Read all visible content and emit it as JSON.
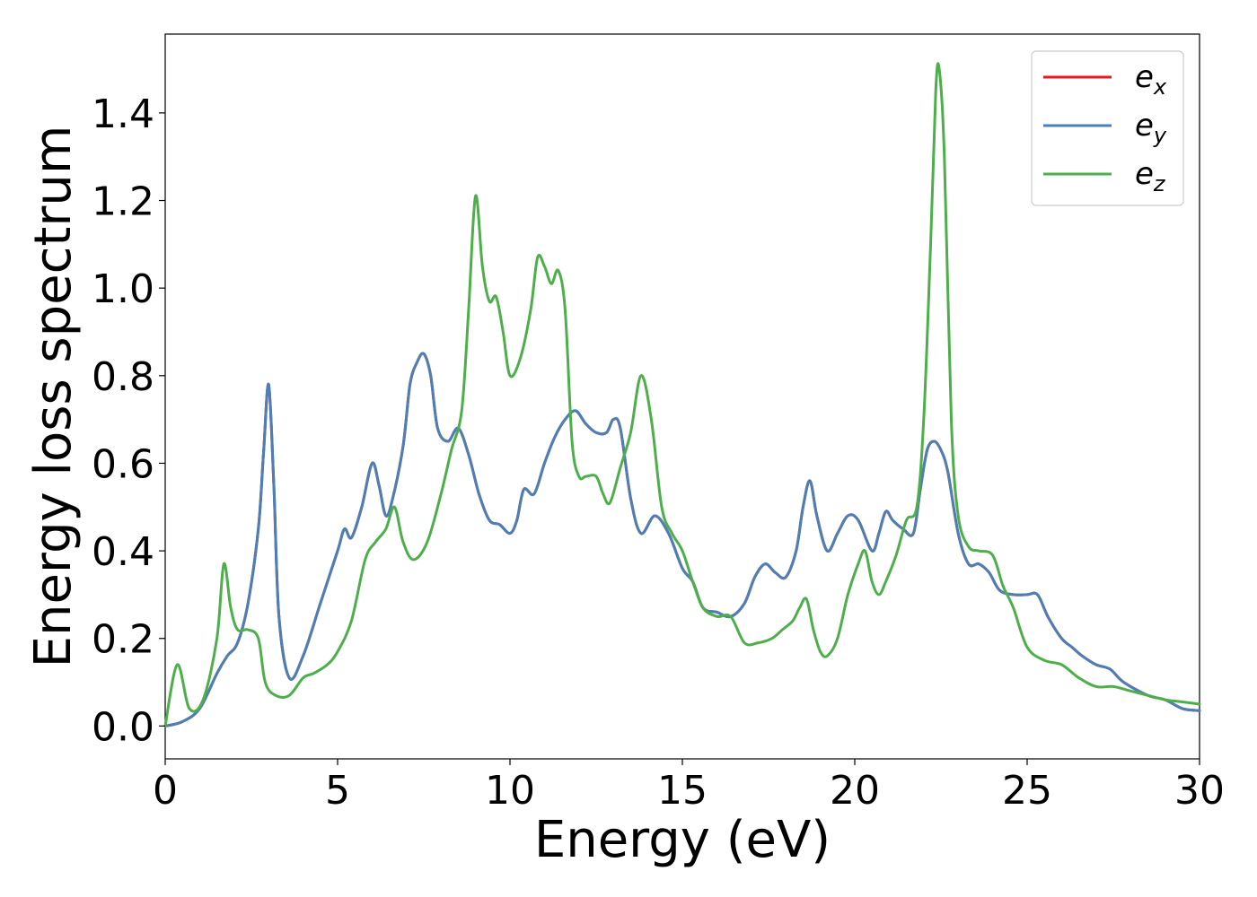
{
  "chart_data": {
    "type": "line",
    "title": "",
    "xlabel": "Energy (eV)",
    "ylabel": "Energy loss spectrum",
    "xlim": [
      0,
      30
    ],
    "ylim": [
      -0.075,
      1.58
    ],
    "xticks": [
      0,
      5,
      10,
      15,
      20,
      25,
      30
    ],
    "xtick_labels": [
      "0",
      "5",
      "10",
      "15",
      "20",
      "25",
      "30"
    ],
    "yticks": [
      0.0,
      0.2,
      0.4,
      0.6,
      0.8,
      1.0,
      1.2,
      1.4
    ],
    "ytick_labels": [
      "0.0",
      "0.2",
      "0.4",
      "0.6",
      "0.8",
      "1.0",
      "1.2",
      "1.4"
    ],
    "grid": false,
    "legend_position": "top-right",
    "series": [
      {
        "name_base": "e",
        "name_sub": "x",
        "color": "#e41a1c",
        "x": [
          0,
          0.5,
          1,
          1.5,
          1.8,
          2.1,
          2.4,
          2.7,
          2.85,
          3.0,
          3.15,
          3.3,
          3.6,
          4.0,
          4.5,
          5.0,
          5.2,
          5.4,
          5.7,
          6.0,
          6.2,
          6.4,
          6.6,
          6.9,
          7.1,
          7.3,
          7.5,
          7.7,
          7.9,
          8.2,
          8.5,
          8.8,
          9.1,
          9.4,
          9.7,
          10.0,
          10.2,
          10.4,
          10.7,
          11.0,
          11.3,
          11.6,
          11.9,
          12.2,
          12.5,
          12.8,
          13.0,
          13.2,
          13.5,
          13.8,
          14.2,
          14.6,
          15.0,
          15.3,
          15.6,
          16.0,
          16.4,
          16.8,
          17.1,
          17.4,
          17.7,
          18.0,
          18.3,
          18.5,
          18.7,
          18.9,
          19.2,
          19.5,
          19.8,
          20.1,
          20.5,
          20.7,
          20.9,
          21.1,
          21.4,
          21.7,
          21.9,
          22.1,
          22.3,
          22.5,
          22.7,
          23.0,
          23.3,
          23.6,
          23.9,
          24.2,
          24.6,
          25.0,
          25.3,
          25.6,
          26.0,
          26.3,
          26.6,
          27.0,
          27.4,
          27.8,
          28.5,
          29.0,
          29.5,
          30.0
        ],
        "y": [
          0.0,
          0.01,
          0.04,
          0.12,
          0.16,
          0.19,
          0.28,
          0.45,
          0.62,
          0.78,
          0.55,
          0.25,
          0.11,
          0.16,
          0.28,
          0.4,
          0.45,
          0.43,
          0.5,
          0.6,
          0.55,
          0.48,
          0.52,
          0.64,
          0.78,
          0.83,
          0.85,
          0.8,
          0.68,
          0.65,
          0.68,
          0.62,
          0.53,
          0.47,
          0.46,
          0.44,
          0.47,
          0.54,
          0.53,
          0.6,
          0.66,
          0.7,
          0.72,
          0.69,
          0.67,
          0.67,
          0.7,
          0.68,
          0.52,
          0.44,
          0.48,
          0.44,
          0.36,
          0.33,
          0.27,
          0.26,
          0.25,
          0.28,
          0.34,
          0.37,
          0.35,
          0.34,
          0.4,
          0.5,
          0.56,
          0.48,
          0.4,
          0.44,
          0.48,
          0.47,
          0.4,
          0.44,
          0.49,
          0.47,
          0.45,
          0.44,
          0.54,
          0.63,
          0.65,
          0.63,
          0.58,
          0.44,
          0.37,
          0.37,
          0.35,
          0.31,
          0.3,
          0.3,
          0.3,
          0.25,
          0.2,
          0.18,
          0.16,
          0.14,
          0.13,
          0.1,
          0.07,
          0.06,
          0.04,
          0.035
        ]
      },
      {
        "name_base": "e",
        "name_sub": "y",
        "color": "#4a7fb8",
        "x": [
          0,
          0.5,
          1,
          1.5,
          1.8,
          2.1,
          2.4,
          2.7,
          2.85,
          3.0,
          3.15,
          3.3,
          3.6,
          4.0,
          4.5,
          5.0,
          5.2,
          5.4,
          5.7,
          6.0,
          6.2,
          6.4,
          6.6,
          6.9,
          7.1,
          7.3,
          7.5,
          7.7,
          7.9,
          8.2,
          8.5,
          8.8,
          9.1,
          9.4,
          9.7,
          10.0,
          10.2,
          10.4,
          10.7,
          11.0,
          11.3,
          11.6,
          11.9,
          12.2,
          12.5,
          12.8,
          13.0,
          13.2,
          13.5,
          13.8,
          14.2,
          14.6,
          15.0,
          15.3,
          15.6,
          16.0,
          16.4,
          16.8,
          17.1,
          17.4,
          17.7,
          18.0,
          18.3,
          18.5,
          18.7,
          18.9,
          19.2,
          19.5,
          19.8,
          20.1,
          20.5,
          20.7,
          20.9,
          21.1,
          21.4,
          21.7,
          21.9,
          22.1,
          22.3,
          22.5,
          22.7,
          23.0,
          23.3,
          23.6,
          23.9,
          24.2,
          24.6,
          25.0,
          25.3,
          25.6,
          26.0,
          26.3,
          26.6,
          27.0,
          27.4,
          27.8,
          28.5,
          29.0,
          29.5,
          30.0
        ],
        "y": [
          0.0,
          0.01,
          0.04,
          0.12,
          0.16,
          0.19,
          0.28,
          0.45,
          0.62,
          0.78,
          0.55,
          0.25,
          0.11,
          0.16,
          0.28,
          0.4,
          0.45,
          0.43,
          0.5,
          0.6,
          0.55,
          0.48,
          0.52,
          0.64,
          0.78,
          0.83,
          0.85,
          0.8,
          0.68,
          0.65,
          0.68,
          0.62,
          0.53,
          0.47,
          0.46,
          0.44,
          0.47,
          0.54,
          0.53,
          0.6,
          0.66,
          0.7,
          0.72,
          0.69,
          0.67,
          0.67,
          0.7,
          0.68,
          0.52,
          0.44,
          0.48,
          0.44,
          0.36,
          0.33,
          0.27,
          0.26,
          0.25,
          0.28,
          0.34,
          0.37,
          0.35,
          0.34,
          0.4,
          0.5,
          0.56,
          0.48,
          0.4,
          0.44,
          0.48,
          0.47,
          0.4,
          0.44,
          0.49,
          0.47,
          0.45,
          0.44,
          0.54,
          0.63,
          0.65,
          0.63,
          0.58,
          0.44,
          0.37,
          0.37,
          0.35,
          0.31,
          0.3,
          0.3,
          0.3,
          0.25,
          0.2,
          0.18,
          0.16,
          0.14,
          0.13,
          0.1,
          0.07,
          0.06,
          0.04,
          0.035
        ]
      },
      {
        "name_base": "e",
        "name_sub": "z",
        "color": "#4daf4a",
        "x": [
          0,
          0.35,
          0.7,
          1.1,
          1.5,
          1.7,
          1.9,
          2.1,
          2.4,
          2.7,
          2.9,
          3.2,
          3.6,
          4.0,
          4.3,
          4.7,
          5.0,
          5.4,
          5.8,
          6.1,
          6.4,
          6.65,
          6.9,
          7.2,
          7.6,
          8.0,
          8.3,
          8.6,
          8.8,
          9.0,
          9.2,
          9.4,
          9.6,
          9.8,
          10.0,
          10.3,
          10.6,
          10.8,
          11.0,
          11.2,
          11.4,
          11.6,
          11.8,
          12.0,
          12.2,
          12.5,
          12.7,
          12.9,
          13.2,
          13.5,
          13.8,
          14.1,
          14.4,
          14.7,
          15.0,
          15.3,
          15.6,
          16.0,
          16.4,
          16.8,
          17.2,
          17.6,
          17.9,
          18.2,
          18.4,
          18.6,
          18.8,
          19.0,
          19.2,
          19.5,
          19.8,
          20.1,
          20.3,
          20.5,
          20.7,
          20.9,
          21.2,
          21.5,
          21.8,
          22.0,
          22.2,
          22.35,
          22.45,
          22.6,
          22.8,
          23.0,
          23.3,
          23.6,
          24.0,
          24.3,
          24.6,
          25.0,
          25.5,
          26.0,
          26.5,
          27.0,
          27.5,
          28.0,
          28.5,
          29.0,
          29.5,
          30.0
        ],
        "y": [
          0.0,
          0.14,
          0.04,
          0.06,
          0.2,
          0.37,
          0.27,
          0.22,
          0.22,
          0.2,
          0.1,
          0.07,
          0.07,
          0.11,
          0.12,
          0.14,
          0.17,
          0.24,
          0.38,
          0.42,
          0.45,
          0.5,
          0.42,
          0.38,
          0.42,
          0.53,
          0.63,
          0.72,
          0.95,
          1.21,
          1.05,
          0.97,
          0.98,
          0.9,
          0.8,
          0.84,
          0.95,
          1.07,
          1.05,
          1.01,
          1.04,
          0.95,
          0.65,
          0.57,
          0.57,
          0.57,
          0.53,
          0.51,
          0.59,
          0.67,
          0.8,
          0.7,
          0.5,
          0.44,
          0.4,
          0.33,
          0.27,
          0.25,
          0.25,
          0.19,
          0.19,
          0.2,
          0.22,
          0.24,
          0.27,
          0.29,
          0.22,
          0.17,
          0.16,
          0.2,
          0.3,
          0.37,
          0.4,
          0.33,
          0.3,
          0.33,
          0.39,
          0.47,
          0.5,
          0.7,
          1.1,
          1.45,
          1.5,
          1.3,
          0.7,
          0.48,
          0.41,
          0.4,
          0.39,
          0.32,
          0.27,
          0.18,
          0.15,
          0.14,
          0.11,
          0.09,
          0.09,
          0.08,
          0.07,
          0.06,
          0.055,
          0.05
        ]
      }
    ]
  }
}
